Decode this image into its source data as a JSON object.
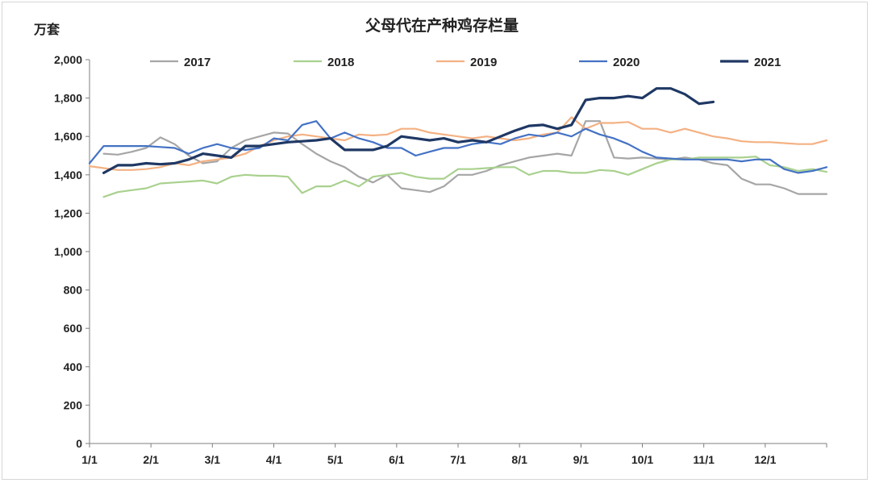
{
  "chart_data": {
    "type": "line",
    "title": "父母代在产种鸡存栏量",
    "unit_label": "万套",
    "x_ticks": [
      "1/1",
      "2/1",
      "3/1",
      "4/1",
      "5/1",
      "6/1",
      "7/1",
      "8/1",
      "9/1",
      "10/1",
      "11/1",
      "12/1"
    ],
    "ylim": [
      0,
      2000
    ],
    "y_ticks": [
      "0",
      "200",
      "400",
      "600",
      "800",
      "1,000",
      "1,200",
      "1,400",
      "1,600",
      "1,800",
      "2,000"
    ],
    "legend_position": "top",
    "grid": false,
    "series": [
      {
        "name": "2017",
        "color": "#a6a6a6",
        "values": [
          null,
          1510,
          1505,
          1520,
          1540,
          1595,
          1560,
          1500,
          1460,
          1470,
          1540,
          1580,
          1600,
          1620,
          1615,
          1560,
          1510,
          1470,
          1440,
          1390,
          1360,
          1400,
          1330,
          1320,
          1310,
          1340,
          1400,
          1400,
          1420,
          1450,
          1470,
          1490,
          1500,
          1510,
          1500,
          1680,
          1680,
          1490,
          1485,
          1490,
          1485,
          1480,
          1490,
          1480,
          1460,
          1450,
          1380,
          1350,
          1350,
          1330,
          1300,
          1300,
          1300
        ]
      },
      {
        "name": "2018",
        "color": "#a9d18e",
        "values": [
          null,
          1285,
          1310,
          1320,
          1330,
          1355,
          1360,
          1365,
          1370,
          1355,
          1390,
          1400,
          1395,
          1395,
          1390,
          1305,
          1340,
          1340,
          1370,
          1340,
          1390,
          1400,
          1410,
          1390,
          1380,
          1380,
          1430,
          1430,
          1435,
          1440,
          1440,
          1400,
          1420,
          1420,
          1410,
          1410,
          1425,
          1420,
          1400,
          1430,
          1460,
          1480,
          1480,
          1490,
          1490,
          1490,
          1490,
          1495,
          1450,
          1440,
          1420,
          1430,
          1415
        ]
      },
      {
        "name": "2019",
        "color": "#f4b183",
        "values": [
          1445,
          1435,
          1425,
          1425,
          1430,
          1440,
          1460,
          1450,
          1470,
          1480,
          1490,
          1510,
          1550,
          1580,
          1600,
          1610,
          1600,
          1590,
          1580,
          1610,
          1605,
          1610,
          1640,
          1640,
          1620,
          1610,
          1600,
          1590,
          1600,
          1590,
          1580,
          1590,
          1610,
          1620,
          1700,
          1640,
          1670,
          1670,
          1675,
          1640,
          1640,
          1620,
          1640,
          1620,
          1600,
          1590,
          1575,
          1570,
          1570,
          1565,
          1560,
          1560,
          1580
        ]
      },
      {
        "name": "2020",
        "color": "#4472c4",
        "values": [
          1460,
          1550,
          1550,
          1550,
          1550,
          1545,
          1540,
          1510,
          1540,
          1560,
          1540,
          1530,
          1540,
          1590,
          1580,
          1660,
          1680,
          1590,
          1620,
          1590,
          1570,
          1540,
          1540,
          1500,
          1520,
          1540,
          1540,
          1560,
          1570,
          1560,
          1590,
          1610,
          1600,
          1620,
          1600,
          1640,
          1610,
          1590,
          1560,
          1520,
          1490,
          1485,
          1480,
          1480,
          1480,
          1480,
          1470,
          1480,
          1480,
          1430,
          1410,
          1420,
          1440
        ]
      },
      {
        "name": "2021",
        "color": "#1f3864",
        "values": [
          null,
          1410,
          1450,
          1450,
          1460,
          1455,
          1460,
          1480,
          1510,
          1500,
          1490,
          1550,
          1550,
          1560,
          1570,
          1575,
          1580,
          1590,
          1530,
          1530,
          1530,
          1550,
          1600,
          1590,
          1580,
          1590,
          1570,
          1580,
          1570,
          1600,
          1630,
          1655,
          1660,
          1640,
          1660,
          1790,
          1800,
          1800,
          1810,
          1800,
          1850,
          1850,
          1820,
          1770,
          1780,
          null,
          null,
          null,
          null,
          null,
          null,
          null,
          null
        ]
      }
    ]
  }
}
